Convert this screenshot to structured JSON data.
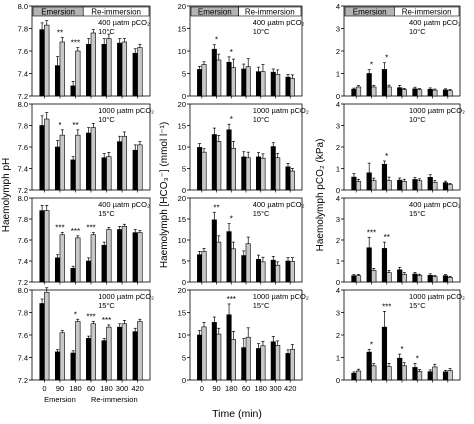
{
  "figure": {
    "x_axis_title": "Time (min)",
    "phase_labels": [
      "Emersion",
      "Re-immersion"
    ],
    "columns": [
      {
        "ylabel": "Haemolymph pH",
        "ylim": [
          7.2,
          8.0
        ],
        "ticks": [
          "7.2",
          "7.4",
          "7.6",
          "7.8",
          "8.0"
        ],
        "tick_values": [
          7.2,
          7.4,
          7.6,
          7.8,
          8.0
        ],
        "show_x_tick_labels": true,
        "show_phase_labels": true
      },
      {
        "ylabel": "Haemolymph [HCO₃⁻] (mmol l⁻¹)",
        "ylim": [
          0,
          20
        ],
        "ticks": [
          "0",
          "5",
          "10",
          "15",
          "20"
        ],
        "tick_values": [
          0,
          5,
          10,
          15,
          20
        ],
        "show_x_tick_labels": true,
        "show_phase_labels": false
      },
      {
        "ylabel": "Haemolymph pCO₂ (kPa)",
        "ylim": [
          0,
          4
        ],
        "ticks": [
          "0",
          "1",
          "2",
          "3",
          "4"
        ],
        "tick_values": [
          0,
          1,
          2,
          3,
          4
        ],
        "show_x_tick_labels": false,
        "show_phase_labels": false
      }
    ],
    "rows": [
      {
        "label1": "400 µatm pCO₂",
        "label2": "10°C"
      },
      {
        "label1": "1000 µatm pCO₂",
        "label2": "10°C"
      },
      {
        "label1": "400 µatm pCO₂",
        "label2": "15°C"
      },
      {
        "label1": "1000 µatm pCO₂",
        "label2": "15°C"
      }
    ]
  },
  "chart_data": [
    {
      "type": "bar",
      "row": 0,
      "col": 0,
      "categories": [
        "0",
        "90",
        "180",
        "60",
        "180",
        "300",
        "420"
      ],
      "series": [
        {
          "color": "#000000",
          "values": [
            7.79,
            7.47,
            7.29,
            7.66,
            7.66,
            7.67,
            7.58
          ],
          "errors": [
            0.06,
            0.08,
            0.04,
            0.05,
            0.05,
            0.04,
            0.04
          ]
        },
        {
          "color": "#c8c8c8",
          "values": [
            7.83,
            7.68,
            7.6,
            7.76,
            7.71,
            7.68,
            7.63
          ],
          "errors": [
            0.04,
            0.04,
            0.03,
            0.03,
            0.04,
            0.03,
            0.03
          ]
        }
      ],
      "stars": [
        "",
        "**",
        "***",
        "",
        "",
        "",
        ""
      ]
    },
    {
      "type": "bar",
      "row": 0,
      "col": 1,
      "categories": [
        "0",
        "90",
        "180",
        "60",
        "180",
        "300",
        "420"
      ],
      "series": [
        {
          "color": "#000000",
          "values": [
            5.9,
            10.4,
            7.5,
            6.0,
            5.4,
            5.3,
            4.2
          ],
          "errors": [
            0.7,
            1.0,
            1.2,
            1.1,
            1.0,
            0.7,
            0.6
          ]
        },
        {
          "color": "#c8c8c8",
          "values": [
            7.0,
            8.0,
            6.3,
            6.5,
            5.4,
            4.8,
            3.9
          ],
          "errors": [
            0.6,
            1.3,
            1.9,
            1.8,
            1.6,
            1.0,
            0.8
          ]
        }
      ],
      "stars": [
        "",
        "*",
        "*",
        "",
        "",
        "",
        ""
      ]
    },
    {
      "type": "bar",
      "row": 0,
      "col": 2,
      "categories": [
        "0",
        "90",
        "180",
        "60",
        "180",
        "300",
        "420"
      ],
      "series": [
        {
          "color": "#000000",
          "values": [
            0.3,
            1.0,
            1.18,
            0.37,
            0.32,
            0.3,
            0.27
          ],
          "errors": [
            0.05,
            0.17,
            0.3,
            0.1,
            0.07,
            0.06,
            0.05
          ]
        },
        {
          "color": "#c8c8c8",
          "values": [
            0.4,
            0.4,
            0.4,
            0.28,
            0.28,
            0.26,
            0.24
          ],
          "errors": [
            0.06,
            0.07,
            0.08,
            0.06,
            0.05,
            0.05,
            0.05
          ]
        }
      ],
      "stars": [
        "",
        "*",
        "*",
        "",
        "",
        "",
        ""
      ]
    },
    {
      "type": "bar",
      "row": 1,
      "col": 0,
      "categories": [
        "0",
        "90",
        "180",
        "60",
        "180",
        "300",
        "420"
      ],
      "series": [
        {
          "color": "#000000",
          "values": [
            7.8,
            7.6,
            7.48,
            7.73,
            7.5,
            7.65,
            7.57
          ],
          "errors": [
            0.09,
            0.06,
            0.03,
            0.05,
            0.04,
            0.05,
            0.05
          ]
        },
        {
          "color": "#c8c8c8",
          "values": [
            7.86,
            7.71,
            7.71,
            7.78,
            7.51,
            7.7,
            7.62
          ],
          "errors": [
            0.06,
            0.05,
            0.05,
            0.04,
            0.04,
            0.04,
            0.03
          ]
        }
      ],
      "stars": [
        "",
        "*",
        "**",
        "",
        "",
        "",
        ""
      ]
    },
    {
      "type": "bar",
      "row": 1,
      "col": 1,
      "categories": [
        "0",
        "90",
        "180",
        "60",
        "180",
        "300",
        "420"
      ],
      "series": [
        {
          "color": "#000000",
          "values": [
            9.9,
            12.9,
            14.0,
            7.7,
            7.7,
            10.1,
            5.4
          ],
          "errors": [
            0.9,
            1.5,
            1.3,
            1.2,
            1.0,
            0.9,
            0.8
          ]
        },
        {
          "color": "#c8c8c8",
          "values": [
            8.8,
            11.3,
            9.7,
            7.5,
            7.4,
            7.5,
            4.4
          ],
          "errors": [
            0.8,
            1.4,
            1.6,
            1.3,
            1.0,
            1.0,
            0.6
          ]
        }
      ],
      "stars": [
        "",
        "",
        "*",
        "",
        "",
        "",
        ""
      ]
    },
    {
      "type": "bar",
      "row": 1,
      "col": 2,
      "categories": [
        "0",
        "90",
        "180",
        "60",
        "180",
        "300",
        "420"
      ],
      "series": [
        {
          "color": "#000000",
          "values": [
            0.6,
            0.8,
            1.2,
            0.46,
            0.49,
            0.59,
            0.34
          ],
          "errors": [
            0.17,
            0.45,
            0.15,
            0.1,
            0.09,
            0.12,
            0.07
          ]
        },
        {
          "color": "#c8c8c8",
          "values": [
            0.4,
            0.44,
            0.44,
            0.4,
            0.43,
            0.36,
            0.25
          ],
          "errors": [
            0.1,
            0.11,
            0.16,
            0.1,
            0.09,
            0.08,
            0.05
          ]
        }
      ],
      "stars": [
        "",
        "",
        "*",
        "",
        "",
        "",
        ""
      ]
    },
    {
      "type": "bar",
      "row": 2,
      "col": 0,
      "categories": [
        "0",
        "90",
        "180",
        "60",
        "180",
        "300",
        "420"
      ],
      "series": [
        {
          "color": "#000000",
          "values": [
            7.88,
            7.43,
            7.33,
            7.4,
            7.55,
            7.7,
            7.67
          ],
          "errors": [
            0.05,
            0.03,
            0.02,
            0.03,
            0.03,
            0.03,
            0.03
          ]
        },
        {
          "color": "#c8c8c8",
          "values": [
            7.88,
            7.65,
            7.62,
            7.65,
            7.7,
            7.73,
            7.67
          ],
          "errors": [
            0.05,
            0.02,
            0.02,
            0.02,
            0.02,
            0.02,
            0.02
          ]
        }
      ],
      "stars": [
        "",
        "***",
        "***",
        "***",
        "",
        "",
        ""
      ]
    },
    {
      "type": "bar",
      "row": 2,
      "col": 1,
      "categories": [
        "0",
        "90",
        "180",
        "60",
        "180",
        "300",
        "420"
      ],
      "series": [
        {
          "color": "#000000",
          "values": [
            6.5,
            14.8,
            12.0,
            6.3,
            5.4,
            5.2,
            5.0
          ],
          "errors": [
            0.8,
            1.8,
            1.9,
            1.1,
            1.0,
            0.9,
            0.8
          ]
        },
        {
          "color": "#c8c8c8",
          "values": [
            7.3,
            9.5,
            7.9,
            9.1,
            4.8,
            4.0,
            4.9
          ],
          "errors": [
            0.7,
            1.5,
            1.6,
            1.6,
            1.1,
            0.8,
            0.9
          ]
        }
      ],
      "stars": [
        "",
        "**",
        "*",
        "",
        "",
        "",
        ""
      ]
    },
    {
      "type": "bar",
      "row": 2,
      "col": 2,
      "categories": [
        "0",
        "90",
        "180",
        "60",
        "180",
        "300",
        "420"
      ],
      "series": [
        {
          "color": "#000000",
          "values": [
            0.3,
            1.63,
            1.6,
            0.58,
            0.38,
            0.32,
            0.3
          ],
          "errors": [
            0.05,
            0.5,
            0.3,
            0.12,
            0.08,
            0.07,
            0.05
          ]
        },
        {
          "color": "#c8c8c8",
          "values": [
            0.3,
            0.55,
            0.45,
            0.37,
            0.31,
            0.26,
            0.22
          ],
          "errors": [
            0.06,
            0.1,
            0.1,
            0.08,
            0.06,
            0.05,
            0.05
          ]
        }
      ],
      "stars": [
        "",
        "***",
        "**",
        "",
        "",
        "",
        ""
      ]
    },
    {
      "type": "bar",
      "row": 3,
      "col": 0,
      "categories": [
        "0",
        "90",
        "180",
        "60",
        "180",
        "300",
        "420"
      ],
      "series": [
        {
          "color": "#000000",
          "values": [
            7.88,
            7.45,
            7.44,
            7.57,
            7.55,
            7.67,
            7.63
          ],
          "errors": [
            0.04,
            0.02,
            0.02,
            0.02,
            0.02,
            0.03,
            0.03
          ]
        },
        {
          "color": "#c8c8c8",
          "values": [
            7.98,
            7.62,
            7.72,
            7.7,
            7.67,
            7.7,
            7.72
          ],
          "errors": [
            0.04,
            0.02,
            0.02,
            0.02,
            0.02,
            0.03,
            0.02
          ]
        }
      ],
      "stars": [
        "",
        "",
        "*",
        "***",
        "***",
        "",
        ""
      ]
    },
    {
      "type": "bar",
      "row": 3,
      "col": 1,
      "categories": [
        "0",
        "90",
        "180",
        "60",
        "180",
        "300",
        "420"
      ],
      "series": [
        {
          "color": "#000000",
          "values": [
            10.0,
            12.8,
            14.5,
            7.2,
            7.0,
            8.5,
            5.9
          ],
          "errors": [
            1.0,
            1.2,
            2.4,
            2.0,
            1.1,
            1.2,
            0.8
          ]
        },
        {
          "color": "#c8c8c8",
          "values": [
            11.8,
            10.2,
            9.0,
            9.5,
            7.6,
            7.7,
            6.8
          ],
          "errors": [
            1.0,
            1.3,
            1.8,
            2.1,
            1.0,
            1.0,
            1.1
          ]
        }
      ],
      "stars": [
        "",
        "",
        "***",
        "",
        "",
        "",
        ""
      ]
    },
    {
      "type": "bar",
      "row": 3,
      "col": 2,
      "categories": [
        "0",
        "90",
        "180",
        "60",
        "180",
        "300",
        "420"
      ],
      "series": [
        {
          "color": "#000000",
          "values": [
            0.3,
            1.24,
            2.35,
            0.97,
            0.56,
            0.37,
            0.36
          ],
          "errors": [
            0.06,
            0.12,
            0.7,
            0.18,
            0.18,
            0.08,
            0.07
          ]
        },
        {
          "color": "#c8c8c8",
          "values": [
            0.4,
            0.63,
            0.6,
            0.63,
            0.38,
            0.58,
            0.42
          ],
          "errors": [
            0.08,
            0.1,
            0.14,
            0.14,
            0.09,
            0.12,
            0.09
          ]
        }
      ],
      "stars": [
        "",
        "*",
        "***",
        "*",
        "*",
        "",
        ""
      ]
    }
  ]
}
